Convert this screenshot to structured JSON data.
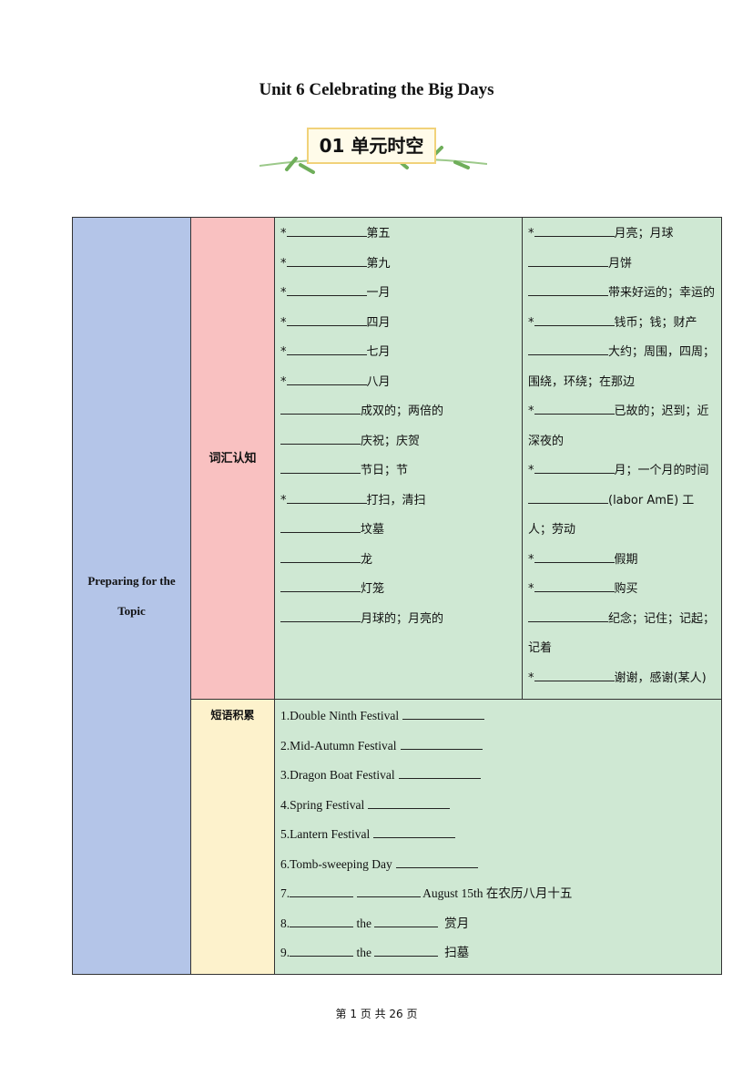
{
  "title": "Unit 6 Celebrating the Big Days",
  "banner": "01 单元时空",
  "section": "Preparing for the Topic",
  "vocab_label": "词汇认知",
  "phrase_label": "短语积累",
  "vocab_left": [
    {
      "star": true,
      "text": "第五"
    },
    {
      "star": true,
      "text": "第九"
    },
    {
      "star": true,
      "text": "一月"
    },
    {
      "star": true,
      "text": "四月"
    },
    {
      "star": true,
      "text": "七月"
    },
    {
      "star": true,
      "text": "八月"
    },
    {
      "star": false,
      "text": "成双的；两倍的"
    },
    {
      "star": false,
      "text": "庆祝；庆贺"
    },
    {
      "star": false,
      "text": "节日；节"
    },
    {
      "star": true,
      "text": "打扫，清扫"
    },
    {
      "star": false,
      "text": "坟墓"
    },
    {
      "star": false,
      "text": "龙"
    },
    {
      "star": false,
      "text": "灯笼"
    },
    {
      "star": false,
      "text": "月球的；月亮的"
    }
  ],
  "vocab_right": [
    {
      "star": true,
      "text": "月亮；月球"
    },
    {
      "star": false,
      "text": "月饼"
    },
    {
      "star": false,
      "text": "带来好运的；幸运的"
    },
    {
      "star": true,
      "text": "钱币；钱；财产"
    },
    {
      "star": false,
      "text": "大约；周围，四周；围绕，环绕；在那边"
    },
    {
      "star": true,
      "text": "已故的；迟到；近深夜的"
    },
    {
      "star": true,
      "text": "月；一个月的时间"
    },
    {
      "star": false,
      "text": "(labor AmE)  工人；劳动"
    },
    {
      "star": true,
      "text": "假期"
    },
    {
      "star": true,
      "text": "购买"
    },
    {
      "star": false,
      "text": "纪念；记住；记起；记着"
    },
    {
      "star": true,
      "text": "谢谢，感谢(某人)"
    }
  ],
  "phrases": [
    "1.Double Ninth Festival",
    "2.Mid-Autumn Festival",
    "3.Dragon Boat Festival",
    "4.Spring Festival",
    "5.Lantern Festival",
    "6.Tomb-sweeping Day"
  ],
  "phrase7": {
    "num": "7.",
    "text": "August 15th 在农历八月十五"
  },
  "phrase8": {
    "num": "8.",
    "the": "the",
    "text": "赏月"
  },
  "phrase9": {
    "num": "9.",
    "the": "the",
    "text": "扫墓"
  },
  "footer": "第 1 页 共 26 页"
}
